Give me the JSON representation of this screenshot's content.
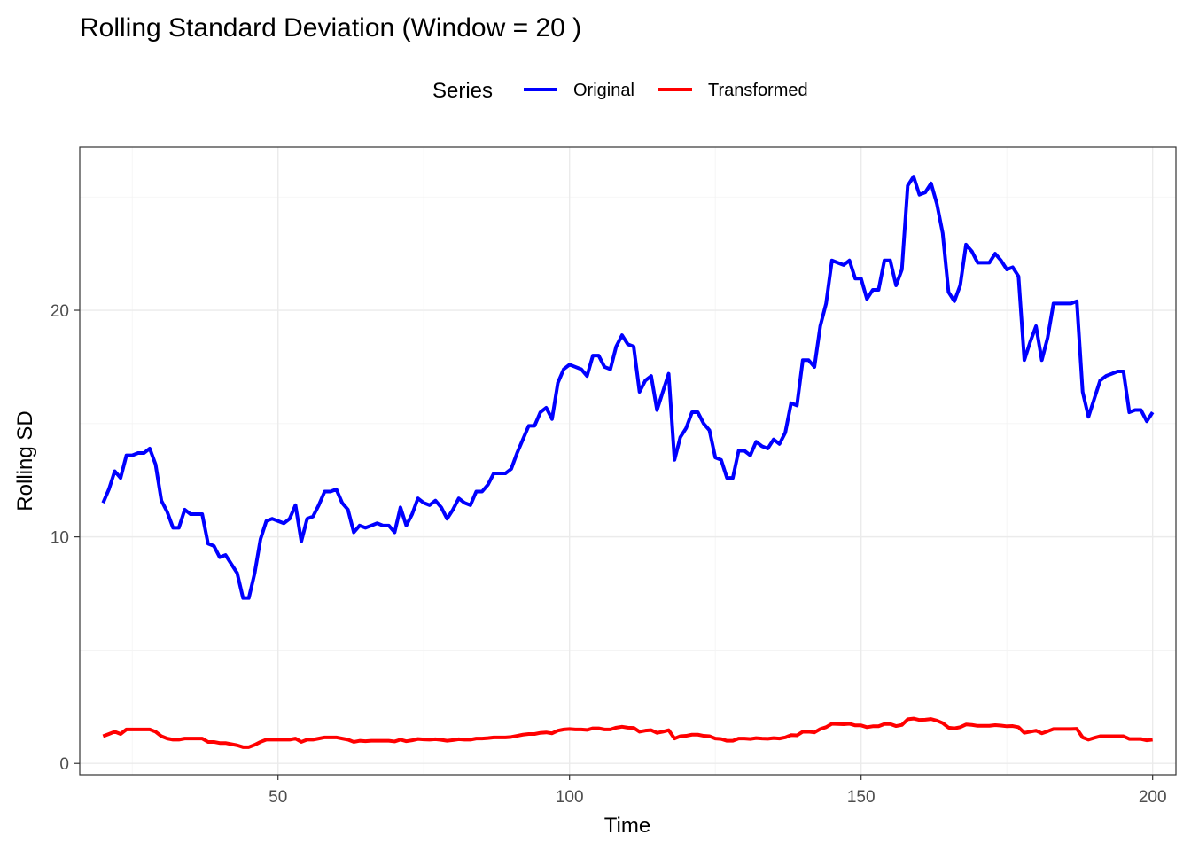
{
  "chart_data": {
    "type": "line",
    "title": "Rolling Standard Deviation (Window = 20 )",
    "xlabel": "Time",
    "ylabel": "Rolling SD",
    "xlim": [
      16,
      204
    ],
    "ylim": [
      -0.5,
      27.2
    ],
    "x_ticks": [
      50,
      100,
      150,
      200
    ],
    "y_ticks": [
      0,
      10,
      20
    ],
    "x_minor_ticks": [
      25,
      75,
      125,
      175
    ],
    "y_minor_ticks": [
      5,
      15,
      25
    ],
    "grid": true,
    "legend": {
      "title": "Series",
      "position": "top",
      "entries": [
        "Original",
        "Transformed"
      ]
    },
    "series": [
      {
        "name": "Original",
        "color": "#0000FF",
        "x": [
          20,
          21,
          22,
          23,
          24,
          25,
          26,
          27,
          28,
          29,
          30,
          31,
          32,
          33,
          34,
          35,
          36,
          37,
          38,
          39,
          40,
          41,
          42,
          43,
          44,
          45,
          46,
          47,
          48,
          49,
          50,
          51,
          52,
          53,
          54,
          55,
          56,
          57,
          58,
          59,
          60,
          61,
          62,
          63,
          64,
          65,
          66,
          67,
          68,
          69,
          70,
          71,
          72,
          73,
          74,
          75,
          76,
          77,
          78,
          79,
          80,
          81,
          82,
          83,
          84,
          85,
          86,
          87,
          88,
          89,
          90,
          91,
          92,
          93,
          94,
          95,
          96,
          97,
          98,
          99,
          100,
          101,
          102,
          103,
          104,
          105,
          106,
          107,
          108,
          109,
          110,
          111,
          112,
          113,
          114,
          115,
          116,
          117,
          118,
          119,
          120,
          121,
          122,
          123,
          124,
          125,
          126,
          127,
          128,
          129,
          130,
          131,
          132,
          133,
          134,
          135,
          136,
          137,
          138,
          139,
          140,
          141,
          142,
          143,
          144,
          145,
          146,
          147,
          148,
          149,
          150,
          151,
          152,
          153,
          154,
          155,
          156,
          157,
          158,
          159,
          160,
          161,
          162,
          163,
          164,
          165,
          166,
          167,
          168,
          169,
          170,
          171,
          172,
          173,
          174,
          175,
          176,
          177,
          178,
          179,
          180,
          181,
          182,
          183,
          184,
          185,
          186,
          187,
          188,
          189,
          190,
          191,
          192,
          193,
          194,
          195,
          196,
          197,
          198,
          199,
          200
        ],
        "y": [
          11.5,
          12.1,
          12.9,
          12.6,
          13.6,
          13.6,
          13.7,
          13.7,
          13.9,
          13.2,
          11.6,
          11.1,
          10.4,
          10.4,
          11.2,
          11.0,
          11.0,
          11.0,
          9.7,
          9.6,
          9.1,
          9.2,
          8.8,
          8.4,
          7.3,
          7.3,
          8.4,
          9.9,
          10.7,
          10.8,
          10.7,
          10.6,
          10.8,
          11.4,
          9.8,
          10.8,
          10.9,
          11.4,
          12.0,
          12.0,
          12.1,
          11.5,
          11.2,
          10.2,
          10.5,
          10.4,
          10.5,
          10.6,
          10.5,
          10.5,
          10.2,
          11.3,
          10.5,
          11.0,
          11.7,
          11.5,
          11.4,
          11.6,
          11.3,
          10.8,
          11.2,
          11.7,
          11.5,
          11.4,
          12.0,
          12.0,
          12.3,
          12.8,
          12.8,
          12.8,
          13.0,
          13.7,
          14.3,
          14.9,
          14.9,
          15.5,
          15.7,
          15.2,
          16.8,
          17.4,
          17.6,
          17.5,
          17.4,
          17.1,
          18.0,
          18.0,
          17.5,
          17.4,
          18.4,
          18.9,
          18.5,
          18.4,
          16.4,
          16.9,
          17.1,
          15.6,
          16.4,
          17.2,
          13.4,
          14.4,
          14.8,
          15.5,
          15.5,
          15.0,
          14.7,
          13.5,
          13.4,
          12.6,
          12.6,
          13.8,
          13.8,
          13.6,
          14.2,
          14.0,
          13.9,
          14.3,
          14.1,
          14.6,
          15.9,
          15.8,
          17.8,
          17.8,
          17.5,
          19.3,
          20.3,
          22.2,
          22.1,
          22.0,
          22.2,
          21.4,
          21.4,
          20.5,
          20.9,
          20.9,
          22.2,
          22.2,
          21.1,
          21.8,
          25.5,
          25.9,
          25.1,
          25.2,
          25.6,
          24.7,
          23.4,
          20.8,
          20.4,
          21.1,
          22.9,
          22.6,
          22.1,
          22.1,
          22.1,
          22.5,
          22.2,
          21.8,
          21.9,
          21.5,
          17.8,
          18.6,
          19.3,
          17.8,
          18.8,
          20.3,
          20.3,
          20.3,
          20.3,
          20.4,
          16.4,
          15.3,
          16.1,
          16.9,
          17.1,
          17.2,
          17.3,
          17.3,
          15.5,
          15.6,
          15.6,
          15.1,
          15.5
        ]
      },
      {
        "name": "Transformed",
        "color": "#FF0000",
        "x": [
          20,
          21,
          22,
          23,
          24,
          25,
          26,
          27,
          28,
          29,
          30,
          31,
          32,
          33,
          34,
          35,
          36,
          37,
          38,
          39,
          40,
          41,
          42,
          43,
          44,
          45,
          46,
          47,
          48,
          49,
          50,
          51,
          52,
          53,
          54,
          55,
          56,
          57,
          58,
          59,
          60,
          61,
          62,
          63,
          64,
          65,
          66,
          67,
          68,
          69,
          70,
          71,
          72,
          73,
          74,
          75,
          76,
          77,
          78,
          79,
          80,
          81,
          82,
          83,
          84,
          85,
          86,
          87,
          88,
          89,
          90,
          91,
          92,
          93,
          94,
          95,
          96,
          97,
          98,
          99,
          100,
          101,
          102,
          103,
          104,
          105,
          106,
          107,
          108,
          109,
          110,
          111,
          112,
          113,
          114,
          115,
          116,
          117,
          118,
          119,
          120,
          121,
          122,
          123,
          124,
          125,
          126,
          127,
          128,
          129,
          130,
          131,
          132,
          133,
          134,
          135,
          136,
          137,
          138,
          139,
          140,
          141,
          142,
          143,
          144,
          145,
          146,
          147,
          148,
          149,
          150,
          151,
          152,
          153,
          154,
          155,
          156,
          157,
          158,
          159,
          160,
          161,
          162,
          163,
          164,
          165,
          166,
          167,
          168,
          169,
          170,
          171,
          172,
          173,
          174,
          175,
          176,
          177,
          178,
          179,
          180,
          181,
          182,
          183,
          184,
          185,
          186,
          187,
          188,
          189,
          190,
          191,
          192,
          193,
          194,
          195,
          196,
          197,
          198,
          199,
          200
        ],
        "y": [
          1.2,
          1.3,
          1.4,
          1.3,
          1.5,
          1.5,
          1.5,
          1.5,
          1.5,
          1.4,
          1.2,
          1.1,
          1.05,
          1.05,
          1.1,
          1.1,
          1.1,
          1.1,
          0.95,
          0.95,
          0.9,
          0.9,
          0.85,
          0.8,
          0.72,
          0.72,
          0.82,
          0.95,
          1.05,
          1.05,
          1.05,
          1.05,
          1.05,
          1.1,
          0.95,
          1.05,
          1.05,
          1.1,
          1.15,
          1.15,
          1.15,
          1.1,
          1.05,
          0.95,
          1.0,
          0.98,
          1.0,
          1.0,
          1.0,
          1.0,
          0.97,
          1.05,
          0.98,
          1.02,
          1.08,
          1.06,
          1.05,
          1.07,
          1.04,
          1.0,
          1.03,
          1.07,
          1.05,
          1.05,
          1.1,
          1.1,
          1.12,
          1.15,
          1.15,
          1.15,
          1.17,
          1.22,
          1.27,
          1.3,
          1.3,
          1.35,
          1.37,
          1.33,
          1.45,
          1.5,
          1.52,
          1.5,
          1.5,
          1.48,
          1.55,
          1.55,
          1.5,
          1.5,
          1.58,
          1.62,
          1.58,
          1.57,
          1.4,
          1.45,
          1.47,
          1.35,
          1.4,
          1.47,
          1.1,
          1.2,
          1.22,
          1.27,
          1.27,
          1.22,
          1.2,
          1.1,
          1.08,
          1.0,
          1.0,
          1.1,
          1.1,
          1.08,
          1.12,
          1.1,
          1.09,
          1.12,
          1.1,
          1.15,
          1.25,
          1.24,
          1.4,
          1.4,
          1.37,
          1.52,
          1.6,
          1.75,
          1.74,
          1.73,
          1.75,
          1.68,
          1.68,
          1.6,
          1.64,
          1.64,
          1.74,
          1.74,
          1.65,
          1.7,
          1.95,
          1.98,
          1.92,
          1.93,
          1.96,
          1.89,
          1.78,
          1.58,
          1.55,
          1.6,
          1.72,
          1.7,
          1.66,
          1.66,
          1.66,
          1.69,
          1.67,
          1.64,
          1.65,
          1.6,
          1.35,
          1.4,
          1.45,
          1.33,
          1.42,
          1.52,
          1.52,
          1.52,
          1.52,
          1.53,
          1.15,
          1.05,
          1.13,
          1.2,
          1.2,
          1.2,
          1.2,
          1.2,
          1.08,
          1.08,
          1.08,
          1.02,
          1.05
        ]
      }
    ]
  }
}
